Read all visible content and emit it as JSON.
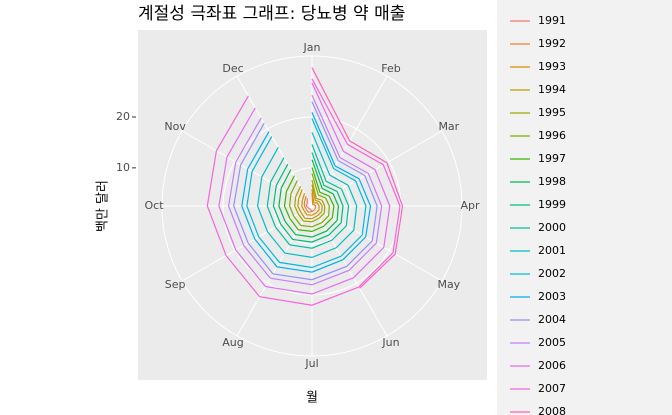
{
  "chart_data": {
    "type": "polar-line",
    "title": "계절성 극좌표 그래프: 당뇨병 약 매출",
    "x_label": "월",
    "y_label": "백만 달러",
    "categories": [
      "Jan",
      "Feb",
      "Mar",
      "Apr",
      "May",
      "Jun",
      "Jul",
      "Aug",
      "Sep",
      "Oct",
      "Nov",
      "Dec"
    ],
    "ylim": [
      2.5,
      32
    ],
    "yticks": [
      10,
      20
    ],
    "grid": true,
    "series": [
      {
        "name": "1991",
        "color": "#F8766D",
        "values": [
          null,
          null,
          null,
          null,
          null,
          null,
          3.5,
          3.2,
          3.3,
          3.6,
          3.6,
          4.3
        ]
      },
      {
        "name": "1992",
        "color": "#EA8331",
        "values": [
          5.1,
          2.8,
          3.0,
          3.2,
          3.3,
          3.4,
          3.6,
          3.9,
          3.8,
          4.0,
          4.2,
          4.8
        ]
      },
      {
        "name": "1993",
        "color": "#D89000",
        "values": [
          5.8,
          3.2,
          3.7,
          3.9,
          4.1,
          4.1,
          4.3,
          4.5,
          4.3,
          4.5,
          4.7,
          5.4
        ]
      },
      {
        "name": "1994",
        "color": "#C09B00",
        "values": [
          6.7,
          3.8,
          4.2,
          4.5,
          4.7,
          4.7,
          5.0,
          5.3,
          5.0,
          5.3,
          5.5,
          6.3
        ]
      },
      {
        "name": "1995",
        "color": "#A3A500",
        "values": [
          7.6,
          4.2,
          4.8,
          5.0,
          5.3,
          5.3,
          5.6,
          5.9,
          5.6,
          5.9,
          6.2,
          7.0
        ]
      },
      {
        "name": "1996",
        "color": "#7CAE00",
        "values": [
          8.9,
          5.0,
          5.6,
          5.9,
          6.3,
          6.3,
          6.6,
          6.9,
          6.6,
          6.9,
          7.3,
          8.3
        ]
      },
      {
        "name": "1997",
        "color": "#39B600",
        "values": [
          10.1,
          5.6,
          6.4,
          6.8,
          7.1,
          7.1,
          7.5,
          7.9,
          7.5,
          7.9,
          8.3,
          9.4
        ]
      },
      {
        "name": "1998",
        "color": "#00BB4E",
        "values": [
          11.6,
          6.5,
          7.3,
          7.7,
          8.2,
          8.2,
          8.6,
          9.0,
          8.6,
          9.0,
          9.5,
          10.8
        ]
      },
      {
        "name": "1999",
        "color": "#00BF7D",
        "values": [
          13.0,
          7.2,
          8.2,
          8.6,
          9.1,
          9.1,
          9.6,
          10.1,
          9.6,
          10.1,
          10.6,
          12.0
        ]
      },
      {
        "name": "2000",
        "color": "#00C1A3",
        "values": [
          14.6,
          8.1,
          9.2,
          9.7,
          10.3,
          10.3,
          10.8,
          11.3,
          10.8,
          11.3,
          11.9,
          13.5
        ]
      },
      {
        "name": "2001",
        "color": "#00BFC4",
        "values": [
          17.0,
          9.5,
          10.7,
          11.3,
          12.0,
          12.0,
          12.6,
          13.2,
          12.6,
          13.2,
          13.9,
          15.8
        ]
      },
      {
        "name": "2002",
        "color": "#00BAE0",
        "values": [
          19.7,
          11.0,
          12.4,
          13.1,
          13.9,
          13.9,
          14.6,
          15.3,
          14.6,
          15.3,
          16.1,
          18.3
        ]
      },
      {
        "name": "2003",
        "color": "#00B0F6",
        "values": [
          20.9,
          11.6,
          13.2,
          14.0,
          14.7,
          14.7,
          15.5,
          16.3,
          15.5,
          16.3,
          17.1,
          19.4
        ]
      },
      {
        "name": "2004",
        "color": "#9590FF",
        "values": [
          23.0,
          12.8,
          14.5,
          15.3,
          16.2,
          16.2,
          17.0,
          17.9,
          17.0,
          17.9,
          18.7,
          21.3
        ]
      },
      {
        "name": "2005",
        "color": "#C77CFF",
        "values": [
          24.3,
          13.5,
          15.3,
          16.2,
          17.1,
          17.1,
          18.0,
          18.9,
          18.0,
          18.9,
          19.8,
          22.5
        ]
      },
      {
        "name": "2006",
        "color": "#E76BF3",
        "values": [
          26.7,
          14.9,
          16.8,
          17.8,
          18.8,
          18.8,
          19.8,
          20.8,
          19.8,
          20.8,
          21.8,
          24.8
        ]
      },
      {
        "name": "2007",
        "color": "#FA62DB",
        "values": [
          27.5,
          16.5,
          18.7,
          19.8,
          20.9,
          20.9,
          22.0,
          23.1,
          22.0,
          23.1,
          24.2,
          27.5
        ]
      },
      {
        "name": "2008",
        "color": "#FF62BC",
        "values": [
          29.7,
          17.3,
          19.5,
          20.3,
          21.4,
          21.2,
          null,
          null,
          null,
          null,
          null,
          null
        ]
      }
    ]
  }
}
